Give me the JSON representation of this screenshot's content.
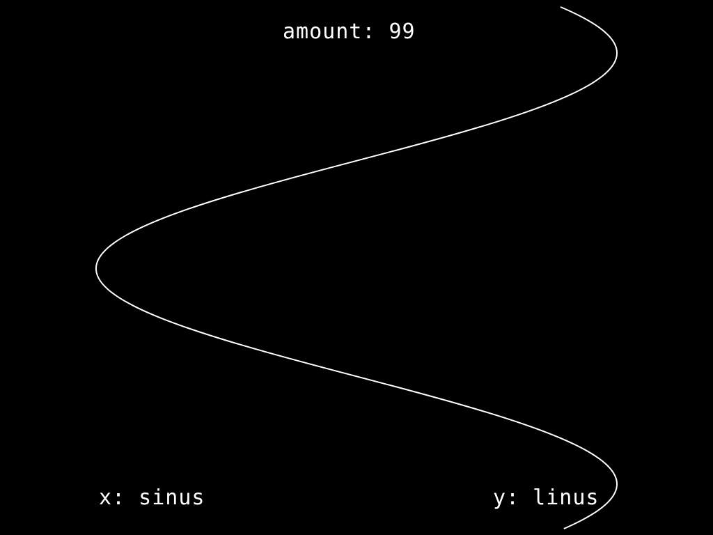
{
  "hud": {
    "amount_text": "amount: 99",
    "x_text": "x: sinus",
    "y_text": "y: linus"
  },
  "curve": {
    "x_function": "sinus",
    "y_function": "linus",
    "amount": 99,
    "color": "#ffffff"
  },
  "colors": {
    "background": "#000000",
    "foreground": "#ffffff"
  }
}
